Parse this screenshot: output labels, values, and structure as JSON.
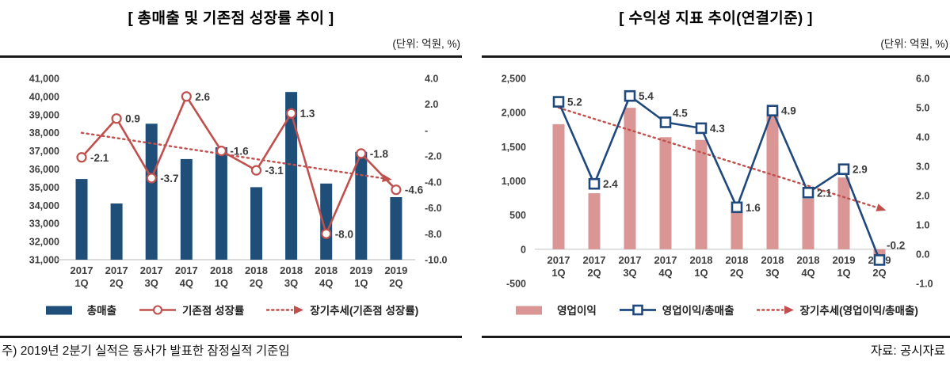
{
  "footnotes": {
    "note": "주) 2019년 2분기 실적은 동사가 발표한 잠정실적 기준임",
    "source": "자료: 공시자료"
  },
  "chart_data": [
    {
      "type": "bar",
      "subtype": "bar-line-combo",
      "title": "[ 총매출 및 기존점 성장률 추이 ]",
      "unit_label": "(단위: 억원, %)",
      "grid": false,
      "legend_position": "bottom",
      "categories": [
        "2017 1Q",
        "2017 2Q",
        "2017 3Q",
        "2017 4Q",
        "2018 1Q",
        "2018 2Q",
        "2018 3Q",
        "2018 4Q",
        "2019 1Q",
        "2019 2Q"
      ],
      "bars": {
        "name": "총매출",
        "axis": "left",
        "color": "#1f4e79",
        "values": [
          35450,
          34100,
          38500,
          36550,
          37200,
          35000,
          40250,
          35200,
          36950,
          34450
        ]
      },
      "line": {
        "name": "기존점 성장률",
        "axis": "right",
        "color": "#c0504d",
        "marker": "circle",
        "values": [
          -2.1,
          0.9,
          -3.7,
          2.6,
          -1.6,
          -3.1,
          1.3,
          -8.0,
          -1.8,
          -4.6
        ],
        "labels": [
          "-2.1",
          "0.9",
          "-3.7",
          "2.6",
          "-1.6",
          "-3.1",
          "1.3",
          "-8.0",
          "-1.8",
          "-4.6"
        ]
      },
      "trend": {
        "name": "장기추세(기존점 성장률)",
        "axis": "right",
        "color": "#c0504d",
        "start_value": -0.2,
        "end_value": -3.7
      },
      "baseline_value": 31000,
      "axes": {
        "left": {
          "min": 31000,
          "max": 41000,
          "ticks": [
            "41,000",
            "40,000",
            "39,000",
            "38,000",
            "37,000",
            "36,000",
            "35,000",
            "34,000",
            "33,000",
            "32,000",
            "31,000"
          ]
        },
        "right": {
          "min": -10,
          "max": 4,
          "ticks": [
            "4.0",
            "2.0",
            "-",
            "-2.0",
            "-4.0",
            "-6.0",
            "-8.0",
            "-10.0"
          ]
        }
      },
      "label_offsets": {},
      "legend": [
        {
          "swatch": "bar",
          "color": "#1f4e79",
          "label": "총매출"
        },
        {
          "swatch": "line-circle",
          "color": "#c0504d",
          "label": "기존점 성장률"
        },
        {
          "swatch": "dotted-arrow",
          "color": "#c0504d",
          "label": "장기추세(기존점 성장률)"
        }
      ]
    },
    {
      "type": "bar",
      "subtype": "bar-line-combo",
      "title": "[ 수익성 지표 추이(연결기준) ]",
      "unit_label": "(단위: 억원, %)",
      "grid": false,
      "legend_position": "bottom",
      "categories": [
        "2017 1Q",
        "2017 2Q",
        "2017 3Q",
        "2017 4Q",
        "2018 1Q",
        "2018 2Q",
        "2018 3Q",
        "2018 4Q",
        "2019 1Q",
        "2019 2Q"
      ],
      "bars": {
        "name": "영업이익",
        "axis": "left",
        "color": "#da9694",
        "values": [
          1830,
          820,
          2070,
          1640,
          1600,
          550,
          2020,
          740,
          1050,
          -80
        ]
      },
      "line": {
        "name": "영업이익/총매출",
        "axis": "right",
        "color": "#1f497d",
        "marker": "square",
        "values": [
          5.2,
          2.4,
          5.4,
          4.5,
          4.3,
          1.6,
          4.9,
          2.1,
          2.9,
          -0.2
        ],
        "labels": [
          "5.2",
          "2.4",
          "5.4",
          "4.5",
          "4.3",
          "1.6",
          "4.9",
          "2.1",
          "2.9",
          "-0.2"
        ]
      },
      "trend": {
        "name": "장기추세(영업이익/총매출)",
        "axis": "right",
        "color": "#c0504d",
        "start_value": 5.0,
        "end_value": 1.6
      },
      "baseline_value": 0,
      "axes": {
        "left": {
          "min": -500,
          "max": 2500,
          "ticks": [
            "2,500",
            "2,000",
            "1,500",
            "1,000",
            "500",
            "0",
            "-500"
          ]
        },
        "right": {
          "min": -1,
          "max": 6,
          "ticks": [
            "6.0",
            "5.0",
            "4.0",
            "3.0",
            "2.0",
            "1.0",
            "0.0",
            "-1.0"
          ]
        }
      },
      "label_offsets": {
        "3": [
          9,
          -7
        ],
        "9": [
          9,
          -14
        ]
      },
      "legend": [
        {
          "swatch": "bar",
          "color": "#da9694",
          "label": "영업이익"
        },
        {
          "swatch": "line-square",
          "color": "#1f497d",
          "label": "영업이익/총매출"
        },
        {
          "swatch": "dotted-arrow",
          "color": "#c0504d",
          "label": "장기추세(영업이익/총매출)"
        }
      ]
    }
  ]
}
